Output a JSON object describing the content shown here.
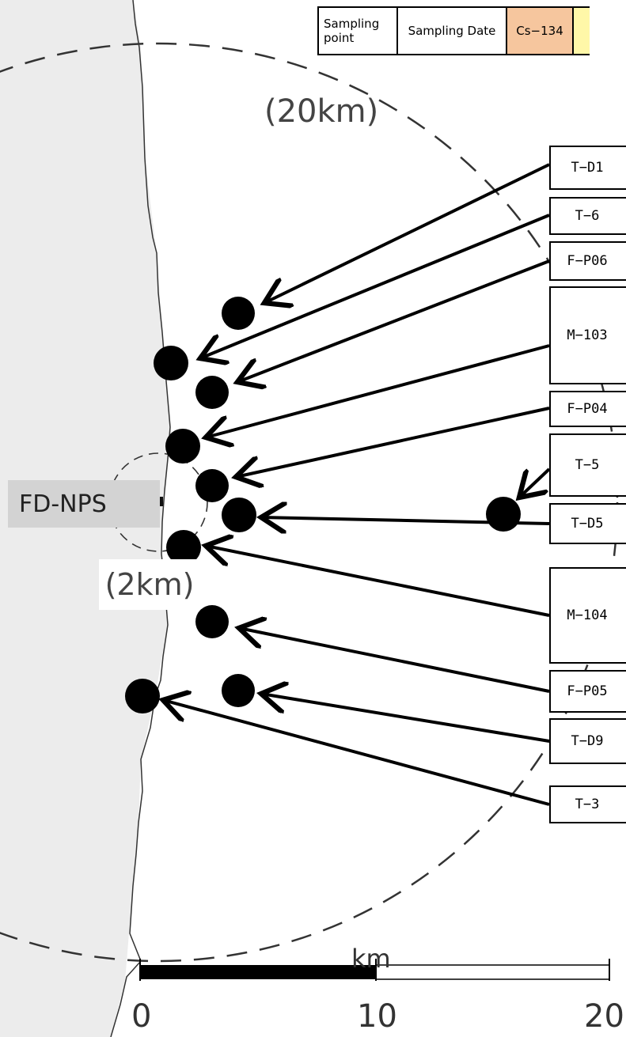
{
  "table_header": {
    "col1": "Sampling point",
    "col2": "Sampling Date",
    "col3": "Cs−134"
  },
  "map_labels": {
    "plant": "FD-NPS",
    "radius_outer": "(20km)",
    "radius_inner": "(2km)"
  },
  "scale_bar": {
    "unit": "km",
    "ticks": [
      "0",
      "10",
      "20"
    ]
  },
  "sampling_points": [
    {
      "label": "T−D1"
    },
    {
      "label": "T−6"
    },
    {
      "label": "F−P06"
    },
    {
      "label": "M−103"
    },
    {
      "label": "F−P04"
    },
    {
      "label": "T−5"
    },
    {
      "label": "T−D5"
    },
    {
      "label": "M−104"
    },
    {
      "label": "F−P05"
    },
    {
      "label": "T−D9"
    },
    {
      "label": "T−3"
    }
  ],
  "colors": {
    "land": "#ececec",
    "cs134_header": "#f6c69e",
    "next_header": "#fff7a8",
    "marker": "#000000"
  }
}
